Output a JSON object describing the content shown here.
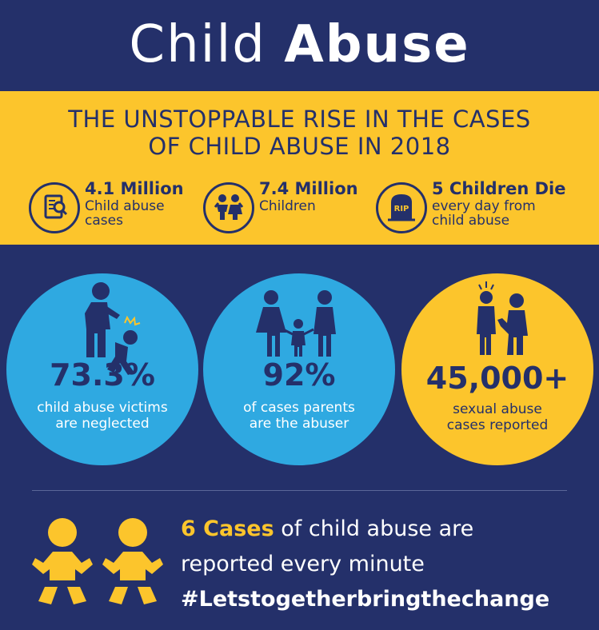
{
  "title": {
    "light": "Child",
    "bold": "Abuse"
  },
  "banner": {
    "headline_line1": "THE UNSTOPPABLE RISE IN THE CASES",
    "headline_line2": "OF CHILD ABUSE IN 2018",
    "stats": [
      {
        "icon": "document-search-icon",
        "number": "4.1 Million",
        "desc_line1": "Child abuse",
        "desc_line2": "cases"
      },
      {
        "icon": "children-icon",
        "number": "7.4 Million",
        "desc_line1": "Children",
        "desc_line2": ""
      },
      {
        "icon": "gravestone-icon",
        "icon_text": "RIP",
        "number": "5 Children Die",
        "desc_line1": "every day from",
        "desc_line2": "child abuse"
      }
    ]
  },
  "circles": [
    {
      "icon": "abuser-hitting-child-icon",
      "number": "73.3%",
      "caption_line1": "child abuse victims",
      "caption_line2": "are neglected",
      "color": "#2fa9e1"
    },
    {
      "icon": "family-icon",
      "number": "92%",
      "caption_line1": "of cases parents",
      "caption_line2": "are the abuser",
      "color": "#2fa9e1"
    },
    {
      "icon": "adult-grabbing-child-icon",
      "number": "45,000+",
      "caption_line1": "sexual abuse",
      "caption_line2": "cases reported",
      "color": "#fcc52c"
    }
  ],
  "bottom": {
    "icon": "babies-icon",
    "highlight": "6 Cases",
    "line1_rest": " of child abuse are",
    "line2": "reported every minute",
    "hashtag": "#Letstogetherbringthechange"
  },
  "colors": {
    "navy": "#24306a",
    "gold": "#fcc52c",
    "blue": "#2fa9e1",
    "white": "#ffffff"
  }
}
